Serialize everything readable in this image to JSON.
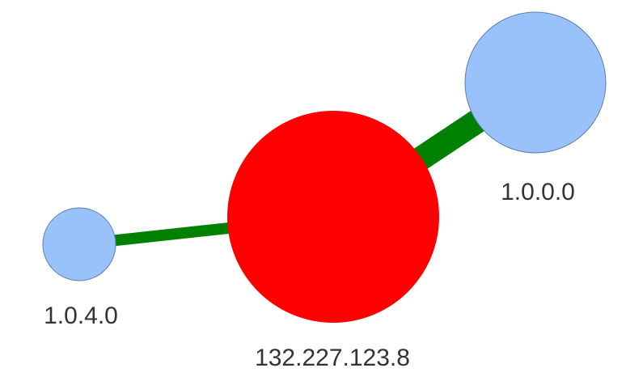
{
  "graph": {
    "colors": {
      "edge": "#008000",
      "node_default": "#99c2fa",
      "node_highlight": "#ff0000",
      "node_stroke": "#5b7fb0",
      "label": "#333333"
    },
    "nodes": [
      {
        "id": "n-center",
        "label": "132.227.123.8",
        "role": "highlight"
      },
      {
        "id": "n-a",
        "label": "1.0.0.0",
        "role": "default"
      },
      {
        "id": "n-b",
        "label": "1.0.4.0",
        "role": "default"
      }
    ],
    "edges": [
      {
        "from": "n-center",
        "to": "n-a"
      },
      {
        "from": "n-center",
        "to": "n-b"
      }
    ]
  }
}
